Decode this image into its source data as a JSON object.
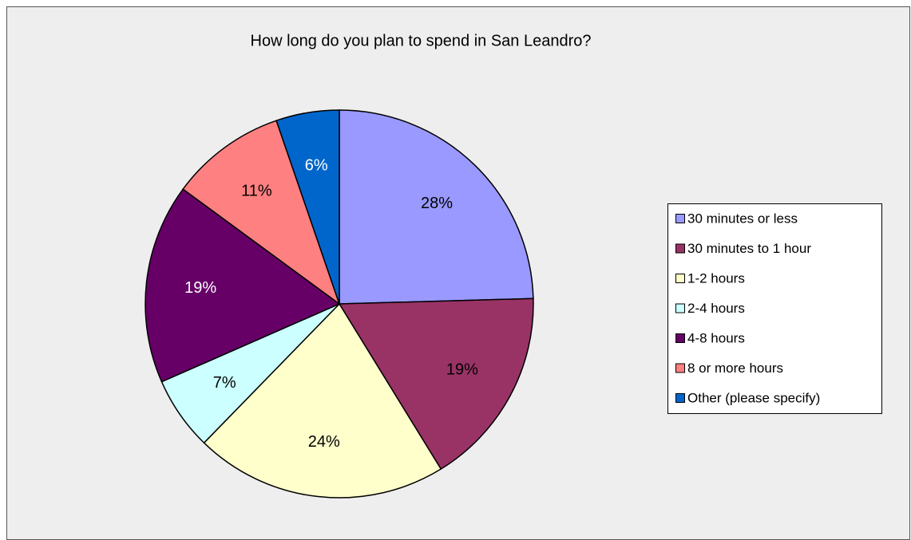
{
  "chart_data": {
    "type": "pie",
    "title": "How long do you plan to spend in San Leandro?",
    "categories": [
      "30 minutes or less",
      "30 minutes to 1 hour",
      "1-2  hours",
      "2-4 hours",
      "4-8  hours",
      "8 or more hours",
      "Other (please specify)"
    ],
    "values": [
      28,
      19,
      24,
      7,
      19,
      11,
      6
    ],
    "value_labels": [
      "28%",
      "19%",
      "24%",
      "7%",
      "19%",
      "11%",
      "6%"
    ],
    "colors": [
      "#9999ff",
      "#993366",
      "#ffffcc",
      "#ccffff",
      "#660066",
      "#ff8080",
      "#0066cc"
    ],
    "legend": "right"
  }
}
